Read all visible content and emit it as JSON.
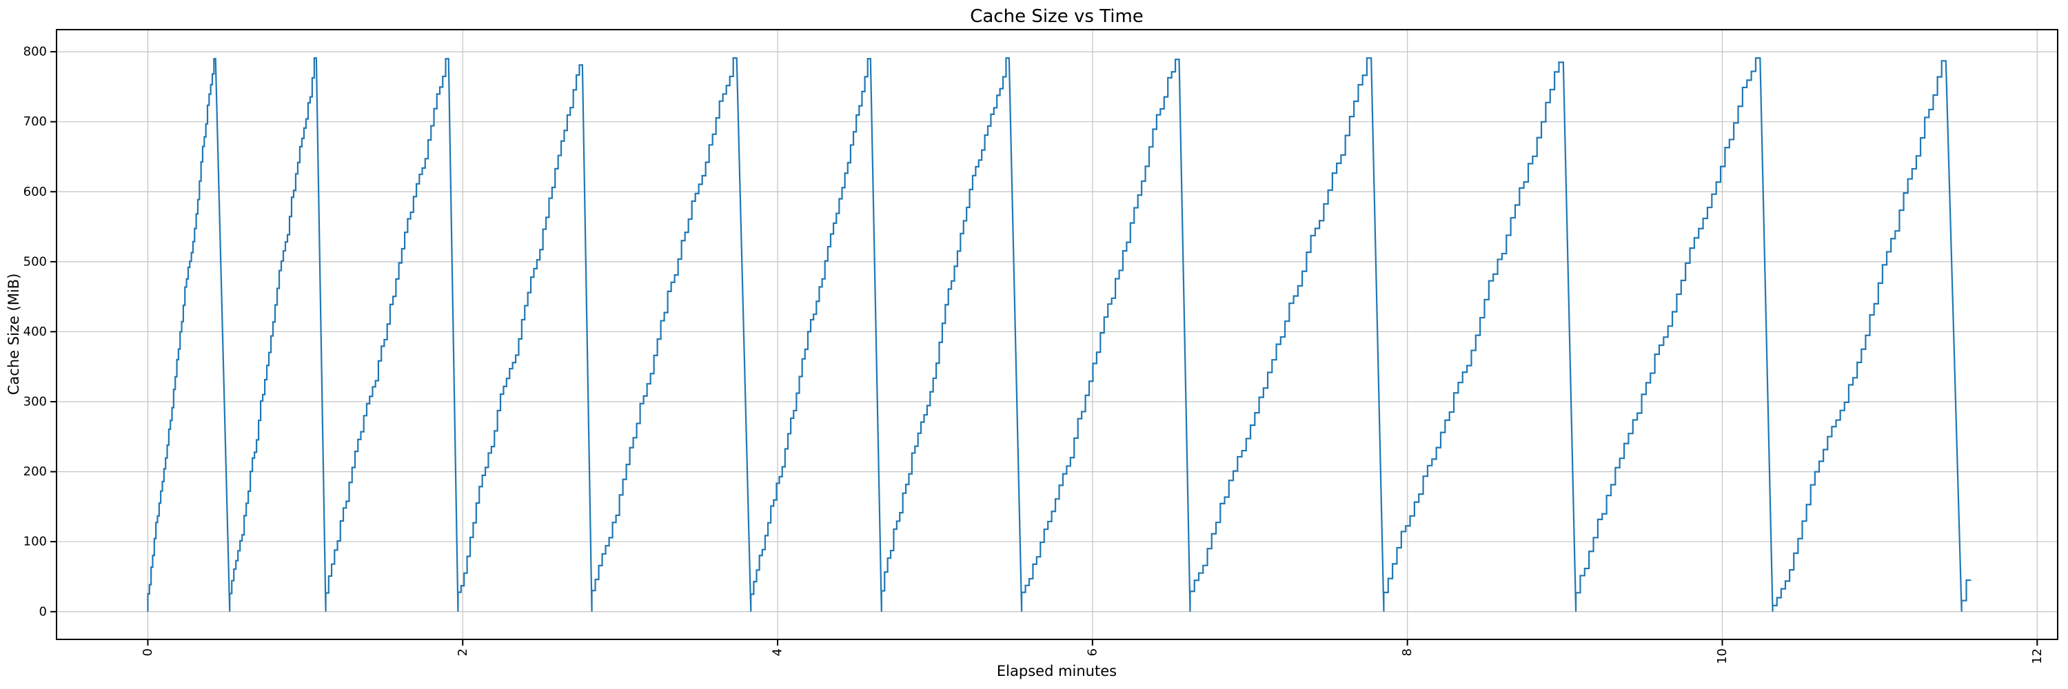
{
  "figure": {
    "background": "#ffffff"
  },
  "chart_data": {
    "type": "line",
    "title": "Cache Size vs Time",
    "xlabel": "Elapsed minutes",
    "ylabel": "Cache Size (MiB)",
    "x_ticks": [
      0,
      2,
      4,
      6,
      8,
      10,
      12
    ],
    "y_ticks": [
      0,
      100,
      200,
      300,
      400,
      500,
      600,
      700,
      800
    ],
    "x_tick_labels": [
      "0",
      "2",
      "4",
      "6",
      "8",
      "10",
      "12"
    ],
    "y_tick_labels": [
      "0",
      "100",
      "200",
      "300",
      "400",
      "500",
      "600",
      "700",
      "800"
    ],
    "xlim": [
      -0.58,
      12.13
    ],
    "ylim": [
      -39.6,
      831.6
    ],
    "grid": true,
    "legend": "none",
    "line_color": "#1f77b4",
    "grid_color": "#c3c3c3",
    "spine_color": "#000000",
    "pattern": "sawtooth: stepped staircase fill to ~790 MiB, then rapid flush to 0",
    "step_mib": 19,
    "teeth": [
      {
        "start": 0.0,
        "peak_time": 0.43,
        "peak_value": 790,
        "fall_end": 0.52
      },
      {
        "start": 0.52,
        "peak_time": 1.07,
        "peak_value": 791,
        "fall_end": 1.13
      },
      {
        "start": 1.13,
        "peak_time": 1.91,
        "peak_value": 790,
        "fall_end": 1.97
      },
      {
        "start": 1.97,
        "peak_time": 2.76,
        "peak_value": 781,
        "fall_end": 2.82
      },
      {
        "start": 2.82,
        "peak_time": 3.74,
        "peak_value": 791,
        "fall_end": 3.83
      },
      {
        "start": 3.83,
        "peak_time": 4.59,
        "peak_value": 790,
        "fall_end": 4.66
      },
      {
        "start": 4.66,
        "peak_time": 5.47,
        "peak_value": 791,
        "fall_end": 5.55
      },
      {
        "start": 5.55,
        "peak_time": 6.55,
        "peak_value": 789,
        "fall_end": 6.62
      },
      {
        "start": 6.62,
        "peak_time": 7.77,
        "peak_value": 791,
        "fall_end": 7.85
      },
      {
        "start": 7.85,
        "peak_time": 8.99,
        "peak_value": 785,
        "fall_end": 9.07
      },
      {
        "start": 9.07,
        "peak_time": 10.24,
        "peak_value": 791,
        "fall_end": 10.32
      },
      {
        "start": 10.32,
        "peak_time": 11.42,
        "peak_value": 787,
        "fall_end": 11.52
      },
      {
        "start": 11.52,
        "peak_time": 11.58,
        "peak_value": 45,
        "fall_end": null
      }
    ]
  }
}
